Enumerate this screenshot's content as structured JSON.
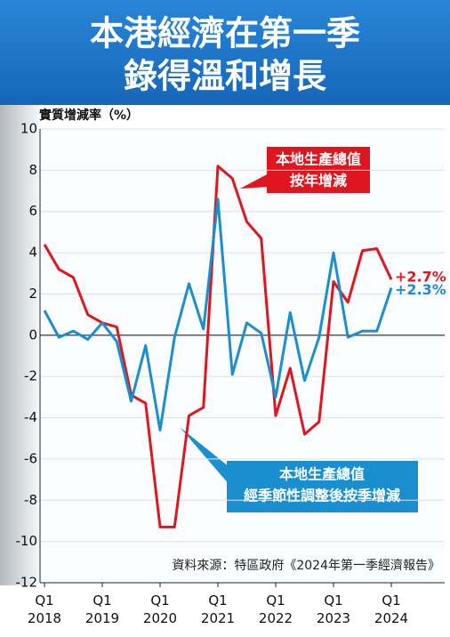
{
  "chart_data": {
    "type": "line",
    "title": [
      "本港經濟在第一季",
      "錄得溫和增長"
    ],
    "y_label": "實質增減率（%）",
    "categories": [
      "Q1 2018",
      null,
      null,
      null,
      "Q1 2019",
      null,
      null,
      null,
      "Q1 2020",
      null,
      null,
      null,
      "Q1 2021",
      null,
      null,
      null,
      "Q1 2022",
      null,
      null,
      null,
      "Q1 2023",
      null,
      null,
      null,
      "Q1 2024"
    ],
    "series": [
      {
        "name": [
          "本地生產總值",
          "按年增減"
        ],
        "color": "#e0161e",
        "values": [
          4.4,
          3.2,
          2.8,
          1.0,
          0.6,
          0.4,
          -2.9,
          -3.3,
          -9.3,
          -9.3,
          -3.9,
          -3.5,
          8.2,
          7.6,
          5.5,
          4.7,
          -3.9,
          -1.6,
          -4.8,
          -4.2,
          2.6,
          1.6,
          4.1,
          4.2,
          2.7
        ],
        "end_label": "+2.7%"
      },
      {
        "name": [
          "本地生產總值",
          "經季節性調整後按季增減"
        ],
        "color": "#1a8fd0",
        "values": [
          1.2,
          -0.1,
          0.2,
          -0.2,
          0.6,
          -0.3,
          -3.2,
          -0.5,
          -4.6,
          -0.1,
          2.5,
          0.3,
          6.6,
          -1.9,
          0.6,
          0.1,
          -3.0,
          1.1,
          -2.2,
          -0.1,
          4.0,
          -0.1,
          0.2,
          0.2,
          2.3
        ],
        "end_label": "+2.3%"
      }
    ],
    "ylim": [
      -12,
      10
    ],
    "yticks": [
      10,
      8,
      6,
      4,
      2,
      0,
      -2,
      -4,
      -6,
      -8,
      -10,
      -12
    ],
    "grid": true,
    "source": "資料來源：特區政府《2024年第一季經濟報告》"
  }
}
